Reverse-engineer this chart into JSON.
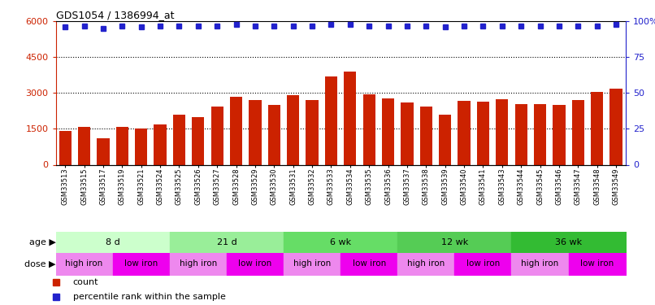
{
  "title": "GDS1054 / 1386994_at",
  "samples": [
    "GSM33513",
    "GSM33515",
    "GSM33517",
    "GSM33519",
    "GSM33521",
    "GSM33524",
    "GSM33525",
    "GSM33526",
    "GSM33527",
    "GSM33528",
    "GSM33529",
    "GSM33530",
    "GSM33531",
    "GSM33532",
    "GSM33533",
    "GSM33534",
    "GSM33535",
    "GSM33536",
    "GSM33537",
    "GSM33538",
    "GSM33539",
    "GSM33540",
    "GSM33541",
    "GSM33543",
    "GSM33544",
    "GSM33545",
    "GSM33546",
    "GSM33547",
    "GSM33548",
    "GSM33549"
  ],
  "counts": [
    1400,
    1600,
    1100,
    1580,
    1520,
    1680,
    2100,
    1980,
    2450,
    2850,
    2700,
    2500,
    2900,
    2700,
    3700,
    3900,
    2950,
    2780,
    2600,
    2450,
    2080,
    2680,
    2650,
    2750,
    2550,
    2550,
    2500,
    2700,
    3050,
    3200
  ],
  "percentiles": [
    96,
    97,
    95,
    97,
    96,
    97,
    97,
    97,
    97,
    98,
    97,
    97,
    97,
    97,
    98,
    98,
    97,
    97,
    97,
    97,
    96,
    97,
    97,
    97,
    97,
    97,
    97,
    97,
    97,
    98
  ],
  "age_groups": [
    {
      "label": "8 d",
      "start": 0,
      "end": 6
    },
    {
      "label": "21 d",
      "start": 6,
      "end": 12
    },
    {
      "label": "6 wk",
      "start": 12,
      "end": 18
    },
    {
      "label": "12 wk",
      "start": 18,
      "end": 24
    },
    {
      "label": "36 wk",
      "start": 24,
      "end": 30
    }
  ],
  "dose_groups": [
    {
      "label": "high iron",
      "start": 0,
      "end": 3
    },
    {
      "label": "low iron",
      "start": 3,
      "end": 6
    },
    {
      "label": "high iron",
      "start": 6,
      "end": 9
    },
    {
      "label": "low iron",
      "start": 9,
      "end": 12
    },
    {
      "label": "high iron",
      "start": 12,
      "end": 15
    },
    {
      "label": "low iron",
      "start": 15,
      "end": 18
    },
    {
      "label": "high iron",
      "start": 18,
      "end": 21
    },
    {
      "label": "low iron",
      "start": 21,
      "end": 24
    },
    {
      "label": "high iron",
      "start": 24,
      "end": 27
    },
    {
      "label": "low iron",
      "start": 27,
      "end": 30
    }
  ],
  "bar_color": "#CC2200",
  "dot_color": "#2222CC",
  "age_colors": [
    "#CCFFCC",
    "#99EE99",
    "#66DD66",
    "#44CC44",
    "#22BB22"
  ],
  "dose_color_high": "#EE88EE",
  "dose_color_low": "#EE00EE",
  "left_ylim": [
    0,
    6000
  ],
  "right_ylim": [
    0,
    100
  ],
  "left_yticks": [
    0,
    1500,
    3000,
    4500,
    6000
  ],
  "right_yticks": [
    0,
    25,
    50,
    75,
    100
  ],
  "right_yticklabels": [
    "0",
    "25",
    "50",
    "75",
    "100%"
  ]
}
